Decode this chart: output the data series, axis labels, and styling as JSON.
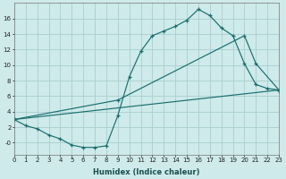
{
  "xlabel": "Humidex (Indice chaleur)",
  "bg_color": "#ceeaea",
  "grid_color": "#aacece",
  "line_color": "#1a6e6e",
  "line1_x": [
    0,
    1,
    2,
    3,
    4,
    5,
    6,
    7,
    8,
    9,
    10,
    11,
    12,
    13,
    14,
    15,
    16,
    17,
    18,
    19,
    20,
    21,
    22,
    23
  ],
  "line1_y": [
    3.0,
    2.2,
    1.8,
    1.0,
    0.5,
    -0.3,
    -0.6,
    -0.6,
    -0.4,
    3.5,
    8.5,
    11.8,
    13.8,
    14.4,
    15.0,
    15.8,
    17.2,
    16.4,
    14.8,
    13.8,
    10.2,
    7.5,
    7.0,
    6.8
  ],
  "line2_x": [
    0,
    23
  ],
  "line2_y": [
    3.0,
    6.8
  ],
  "line3_x": [
    0,
    9,
    20,
    21,
    23
  ],
  "line3_y": [
    3.0,
    5.5,
    13.8,
    10.2,
    6.8
  ],
  "xlim": [
    0,
    23
  ],
  "ylim": [
    -1.5,
    18
  ],
  "yticks": [
    0,
    2,
    4,
    6,
    8,
    10,
    12,
    14,
    16
  ],
  "ytick_labels": [
    "-0",
    "2",
    "4",
    "6",
    "8",
    "10",
    "12",
    "14",
    "16"
  ],
  "xticks": [
    0,
    1,
    2,
    3,
    4,
    5,
    6,
    7,
    8,
    9,
    10,
    11,
    12,
    13,
    14,
    15,
    16,
    17,
    18,
    19,
    20,
    21,
    22,
    23
  ],
  "tick_fontsize": 5.0,
  "label_fontsize": 6.0,
  "figsize": [
    3.2,
    2.0
  ],
  "dpi": 100
}
